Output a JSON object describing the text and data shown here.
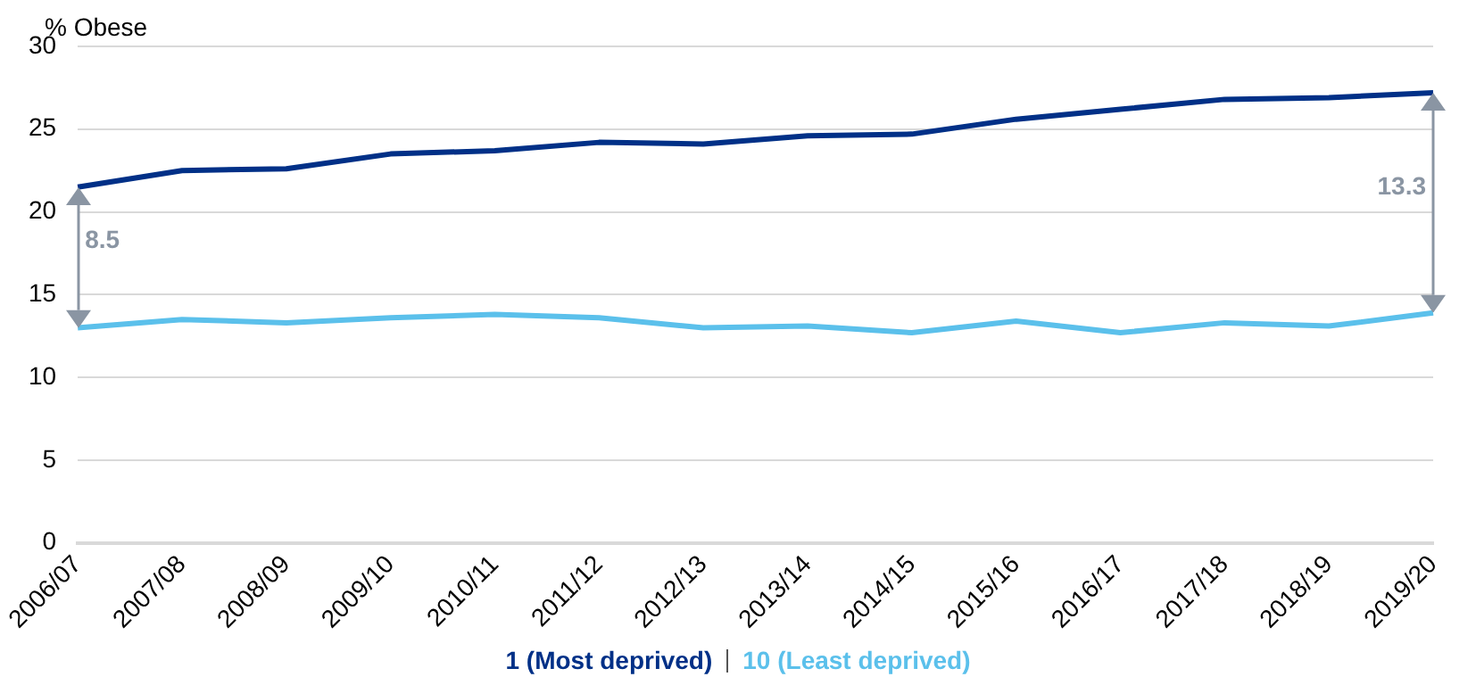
{
  "chart_data": {
    "type": "line",
    "ylabel": "% Obese",
    "categories": [
      "2006/07",
      "2007/08",
      "2008/09",
      "2009/10",
      "2010/11",
      "2011/12",
      "2012/13",
      "2013/14",
      "2014/15",
      "2015/16",
      "2016/17",
      "2017/18",
      "2018/19",
      "2019/20"
    ],
    "series": [
      {
        "name": "1 (Most deprived)",
        "color": "#003087",
        "values": [
          21.5,
          22.5,
          22.6,
          23.5,
          23.7,
          24.2,
          24.1,
          24.6,
          24.7,
          25.6,
          26.2,
          26.8,
          26.9,
          27.2
        ]
      },
      {
        "name": "10 (Least deprived)",
        "color": "#5bc0eb",
        "values": [
          13.0,
          13.5,
          13.3,
          13.6,
          13.8,
          13.6,
          13.0,
          13.1,
          12.7,
          13.4,
          12.7,
          13.3,
          13.1,
          13.9
        ]
      }
    ],
    "ylim": [
      0,
      30
    ],
    "yticks": [
      0,
      5,
      10,
      15,
      20,
      25,
      30
    ],
    "grid": "y",
    "legend": "bottom",
    "marker": "none",
    "line_style": "solid",
    "annotations": [
      "8.5",
      "13.3"
    ]
  }
}
